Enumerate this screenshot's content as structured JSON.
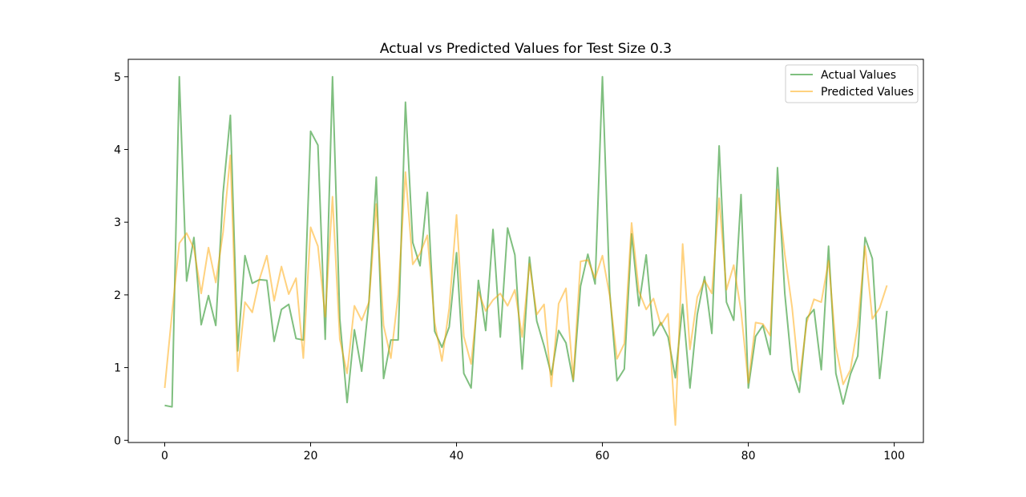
{
  "chart_data": {
    "type": "line",
    "title": "Actual vs Predicted Values for Test Size 0.3",
    "xlabel": "",
    "ylabel": "",
    "xlim": [
      -5,
      104
    ],
    "ylim": [
      -0.03,
      5.24
    ],
    "xticks": [
      0,
      20,
      40,
      60,
      80,
      100
    ],
    "yticks": [
      0,
      1,
      2,
      3,
      4,
      5
    ],
    "grid": false,
    "legend_position": "top-right",
    "series": [
      {
        "name": "Actual Values",
        "color": "#008000",
        "opacity": 0.5,
        "values": [
          0.48,
          0.46,
          5.0,
          2.19,
          2.79,
          1.59,
          1.99,
          1.58,
          3.4,
          4.47,
          1.23,
          2.54,
          2.16,
          2.21,
          2.2,
          1.36,
          1.8,
          1.87,
          1.4,
          1.38,
          4.25,
          4.06,
          1.39,
          5.0,
          1.67,
          0.52,
          1.52,
          0.95,
          1.91,
          3.62,
          0.85,
          1.38,
          1.38,
          4.65,
          2.72,
          2.4,
          3.41,
          1.5,
          1.28,
          1.56,
          2.58,
          0.92,
          0.72,
          2.2,
          1.51,
          2.9,
          1.42,
          2.92,
          2.55,
          0.98,
          2.52,
          1.64,
          1.3,
          0.9,
          1.51,
          1.34,
          0.81,
          2.12,
          2.56,
          2.15,
          5.0,
          2.04,
          0.82,
          0.98,
          2.84,
          1.85,
          2.55,
          1.44,
          1.62,
          1.42,
          0.86,
          1.87,
          0.72,
          1.73,
          2.25,
          1.47,
          4.05,
          1.9,
          1.65,
          3.38,
          0.72,
          1.43,
          1.58,
          1.18,
          3.75,
          2.02,
          0.97,
          0.66,
          1.68,
          1.8,
          0.97,
          2.67,
          0.92,
          0.5,
          0.91,
          1.16,
          2.79,
          2.5,
          0.85,
          1.78
        ]
      },
      {
        "name": "Predicted Values",
        "color": "#ffa500",
        "opacity": 0.5,
        "values": [
          0.72,
          1.75,
          2.71,
          2.85,
          2.64,
          2.02,
          2.65,
          2.17,
          2.86,
          3.92,
          0.95,
          1.9,
          1.76,
          2.22,
          2.54,
          1.92,
          2.39,
          2.01,
          2.23,
          1.13,
          2.93,
          2.67,
          1.7,
          3.35,
          1.39,
          0.92,
          1.85,
          1.65,
          1.9,
          3.25,
          1.58,
          1.13,
          2.0,
          3.69,
          2.42,
          2.57,
          2.82,
          1.62,
          1.09,
          1.82,
          3.1,
          1.43,
          1.05,
          2.04,
          1.78,
          1.93,
          2.02,
          1.85,
          2.07,
          1.42,
          2.43,
          1.73,
          1.87,
          0.74,
          1.88,
          2.09,
          0.84,
          2.46,
          2.48,
          2.23,
          2.54,
          1.99,
          1.12,
          1.33,
          2.99,
          2.05,
          1.8,
          1.95,
          1.58,
          1.74,
          0.21,
          2.7,
          1.25,
          1.97,
          2.2,
          2.02,
          3.33,
          2.07,
          2.41,
          1.78,
          0.79,
          1.62,
          1.6,
          1.44,
          3.45,
          2.56,
          1.83,
          0.82,
          1.62,
          1.94,
          1.9,
          2.47,
          1.29,
          0.77,
          0.97,
          1.58,
          2.67,
          1.67,
          1.82,
          2.13
        ]
      }
    ]
  }
}
